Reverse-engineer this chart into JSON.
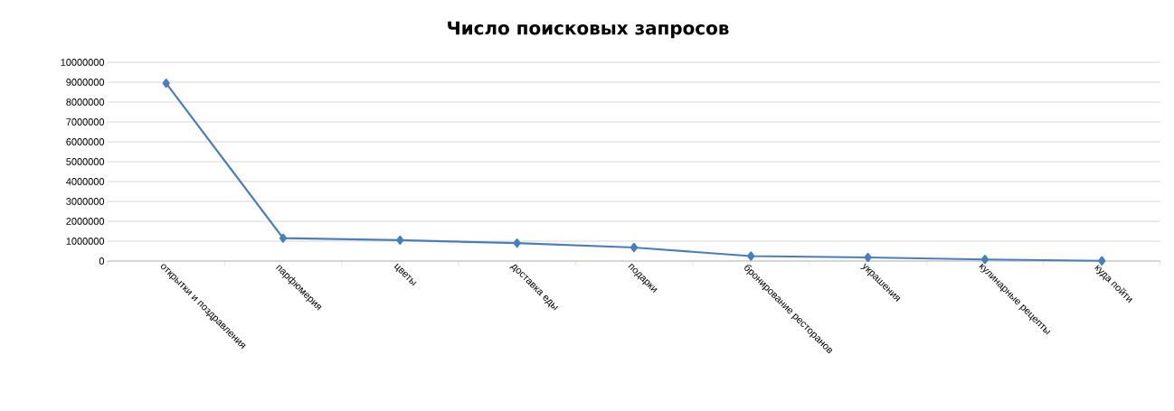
{
  "chart_data": {
    "type": "line",
    "title": "Число поисковых запросов",
    "categories": [
      "открытки и поздравления",
      "парфюмерия",
      "цветы",
      "доставка еды",
      "подарки",
      "бронирование  ресторанов",
      "украшения",
      "кулинарные рецепты",
      "куда пойти"
    ],
    "series": [
      {
        "color": "#4a7ebb",
        "values": [
          8950000,
          1150000,
          1050000,
          900000,
          680000,
          250000,
          180000,
          80000,
          10000
        ]
      }
    ],
    "ylim": [
      0,
      10000000
    ],
    "yticks": [
      0,
      1000000,
      2000000,
      3000000,
      4000000,
      5000000,
      6000000,
      7000000,
      8000000,
      9000000,
      10000000
    ],
    "grid": "y",
    "marker": "diamond",
    "line_style": "solid"
  }
}
